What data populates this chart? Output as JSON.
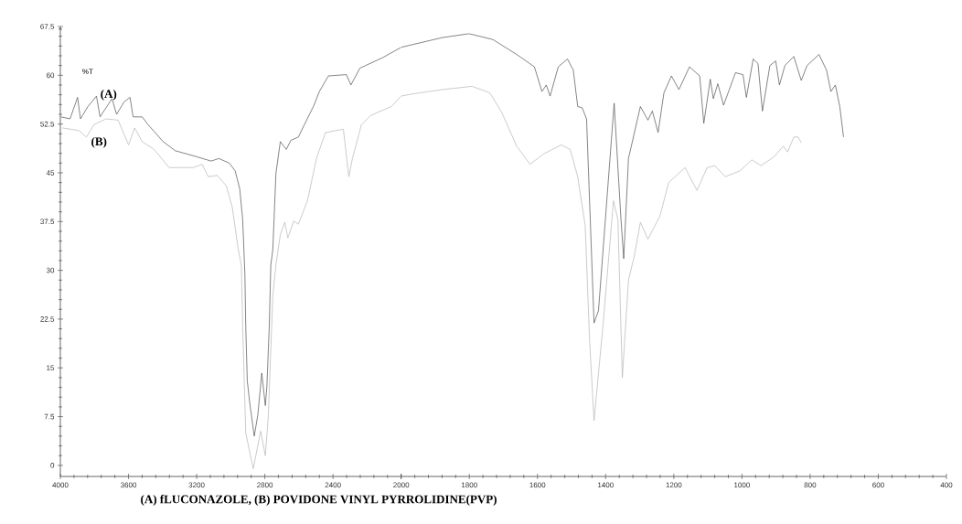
{
  "chart_data": [
    {
      "type": "line",
      "ylabel": "%T",
      "annotations": [
        "(A) fLUCONAZOLE, (B) POVIDONE VINYL PYRROLIDINE(PVP)"
      ],
      "xlim": [
        4000,
        2000
      ],
      "xticks": [
        4000,
        3600,
        3200,
        2800,
        2400,
        2000
      ],
      "ylim": [
        -1.7,
        67.5
      ],
      "yticks": [
        0,
        7.5,
        15,
        22.5,
        30,
        37.5,
        45,
        52.5,
        60,
        67.5
      ],
      "series": [
        {
          "name": "(A)",
          "color": "#505050",
          "x": [
            3996,
            3943,
            3899,
            3882,
            3838,
            3788,
            3767,
            3697,
            3670,
            3626,
            3591,
            3573,
            3520,
            3485,
            3397,
            3326,
            3203,
            3115,
            3070,
            3009,
            2974,
            2947,
            2930,
            2917,
            2912,
            2903,
            2889,
            2862,
            2841,
            2818,
            2797,
            2788,
            2774,
            2765,
            2753,
            2735,
            2709,
            2674,
            2647,
            2603,
            2568,
            2515,
            2480,
            2427,
            2321,
            2295,
            2242,
            2109,
            2000
          ],
          "values": [
            53.6,
            53.3,
            56.6,
            53.3,
            55.2,
            56.8,
            53.6,
            56.4,
            54.0,
            55.9,
            56.6,
            53.6,
            53.6,
            52.4,
            49.8,
            48.4,
            47.5,
            46.8,
            47.2,
            46.5,
            45.3,
            42.5,
            37.8,
            29.4,
            21.4,
            13.0,
            9.7,
            4.5,
            7.8,
            14.2,
            9.2,
            12.1,
            21.4,
            30.8,
            33.2,
            44.9,
            49.8,
            48.6,
            50.0,
            50.5,
            52.4,
            55.2,
            57.5,
            59.9,
            60.1,
            58.5,
            61.1,
            62.7,
            64.3
          ]
        },
        {
          "name": "(B)",
          "color": "#b4b4b4",
          "x": [
            3988,
            3891,
            3847,
            3803,
            3732,
            3661,
            3600,
            3564,
            3520,
            3450,
            3361,
            3221,
            3168,
            3132,
            3079,
            3026,
            2991,
            2956,
            2938,
            2930,
            2912,
            2894,
            2868,
            2824,
            2797,
            2780,
            2753,
            2735,
            2709,
            2683,
            2665,
            2630,
            2603,
            2550,
            2497,
            2444,
            2339,
            2307,
            2286,
            2233,
            2180,
            2057,
            2000
          ],
          "values": [
            51.9,
            51.5,
            50.5,
            52.4,
            53.3,
            53.1,
            49.3,
            51.9,
            49.8,
            48.6,
            45.8,
            45.8,
            46.3,
            44.4,
            44.6,
            43.0,
            39.7,
            33.2,
            30.8,
            21.4,
            5.0,
            2.7,
            -0.5,
            5.3,
            1.5,
            7.4,
            26.1,
            30.8,
            35.5,
            37.4,
            35.0,
            37.6,
            37.1,
            40.7,
            47.2,
            51.2,
            51.7,
            44.4,
            47.2,
            52.4,
            53.8,
            55.2,
            56.8
          ]
        }
      ]
    },
    {
      "type": "line",
      "tick_labels": "x",
      "xlim": [
        2000,
        400
      ],
      "xticks": [
        {
          "value": 2000,
          "label": null
        },
        1800,
        1600,
        1400,
        1200,
        1000,
        800,
        600,
        400
      ],
      "ylim": [
        -1.7,
        67.5
      ],
      "yticks": [
        0,
        7.5,
        15,
        22.5,
        30,
        37.5,
        45,
        52.5,
        60,
        67.5
      ],
      "series": [
        {
          "color": "#505050",
          "x": [
            2000,
            1976,
            1879,
            1801,
            1731,
            1661,
            1609,
            1587,
            1574,
            1563,
            1539,
            1512,
            1495,
            1482,
            1469,
            1456,
            1434,
            1421,
            1375,
            1355,
            1347,
            1333,
            1298,
            1276,
            1263,
            1246,
            1229,
            1207,
            1185,
            1154,
            1124,
            1112,
            1093,
            1084,
            1071,
            1054,
            1019,
            997,
            987,
            967,
            953,
            940,
            918,
            901,
            890,
            874,
            848,
            826,
            809,
            774,
            752,
            739,
            726,
            713,
            702
          ],
          "values": [
            64.3,
            64.6,
            65.8,
            66.4,
            65.5,
            63.2,
            61.3,
            57.5,
            58.5,
            56.8,
            61.3,
            62.5,
            60.8,
            55.2,
            55.0,
            53.3,
            21.9,
            23.8,
            55.7,
            37.8,
            31.8,
            47.2,
            55.2,
            53.1,
            54.5,
            51.2,
            57.3,
            59.9,
            57.8,
            61.3,
            59.9,
            52.6,
            59.4,
            56.4,
            58.7,
            55.4,
            60.4,
            60.1,
            56.6,
            62.5,
            61.8,
            54.5,
            61.5,
            62.2,
            58.5,
            61.5,
            62.9,
            59.2,
            61.5,
            63.2,
            60.8,
            57.5,
            58.5,
            55.2,
            50.5
          ]
        },
        {
          "color": "#b4b4b4",
          "x": [
            2000,
            1971,
            1879,
            1792,
            1740,
            1705,
            1661,
            1622,
            1582,
            1530,
            1504,
            1482,
            1460,
            1447,
            1434,
            1408,
            1377,
            1364,
            1351,
            1333,
            1316,
            1298,
            1276,
            1241,
            1215,
            1167,
            1132,
            1102,
            1080,
            1049,
            1006,
            971,
            944,
            905,
            879,
            866,
            848,
            835,
            826
          ],
          "values": [
            56.8,
            57.1,
            57.8,
            58.3,
            57.3,
            54.3,
            49.1,
            46.3,
            47.9,
            49.3,
            48.6,
            44.4,
            36.9,
            19.1,
            6.9,
            21.4,
            40.7,
            37.8,
            13.5,
            28.5,
            32.2,
            37.4,
            34.8,
            38.3,
            43.5,
            45.8,
            42.3,
            45.8,
            46.1,
            44.4,
            45.3,
            47.0,
            46.1,
            47.5,
            49.1,
            48.2,
            50.5,
            50.5,
            49.6
          ]
        }
      ]
    }
  ]
}
